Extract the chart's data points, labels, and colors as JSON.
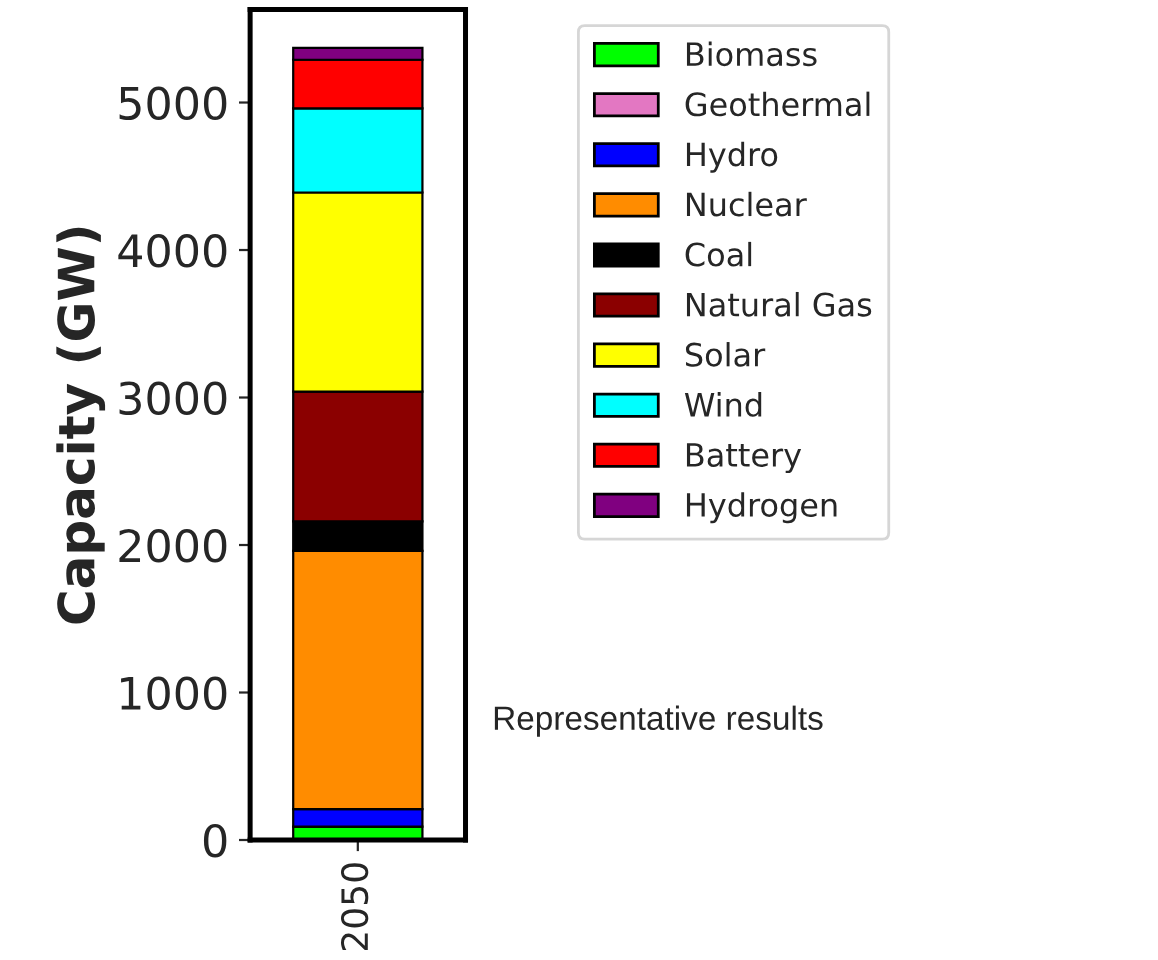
{
  "chart_data": {
    "type": "bar",
    "stacked": true,
    "ylabel": "Capacity (GW)",
    "categories": [
      "2050"
    ],
    "series": [
      {
        "name": "Biomass",
        "color": "#00ff00",
        "values": [
          90
        ]
      },
      {
        "name": "Geothermal",
        "color": "#e377c2",
        "values": [
          0
        ]
      },
      {
        "name": "Hydro",
        "color": "#0000ff",
        "values": [
          120
        ]
      },
      {
        "name": "Nuclear",
        "color": "#ff8c00",
        "values": [
          1750
        ]
      },
      {
        "name": "Coal",
        "color": "#000000",
        "values": [
          200
        ]
      },
      {
        "name": "Natural Gas",
        "color": "#8b0000",
        "values": [
          880
        ]
      },
      {
        "name": "Solar",
        "color": "#ffff00",
        "values": [
          1350
        ]
      },
      {
        "name": "Wind",
        "color": "#00ffff",
        "values": [
          570
        ]
      },
      {
        "name": "Battery",
        "color": "#ff0000",
        "values": [
          330
        ]
      },
      {
        "name": "Hydrogen",
        "color": "#800080",
        "values": [
          80
        ]
      }
    ],
    "ylim": [
      0,
      5630
    ],
    "yticks": [
      0,
      1000,
      2000,
      3000,
      4000,
      5000
    ],
    "legend": "right",
    "grid": false,
    "annotations": [
      "Representative results"
    ]
  }
}
